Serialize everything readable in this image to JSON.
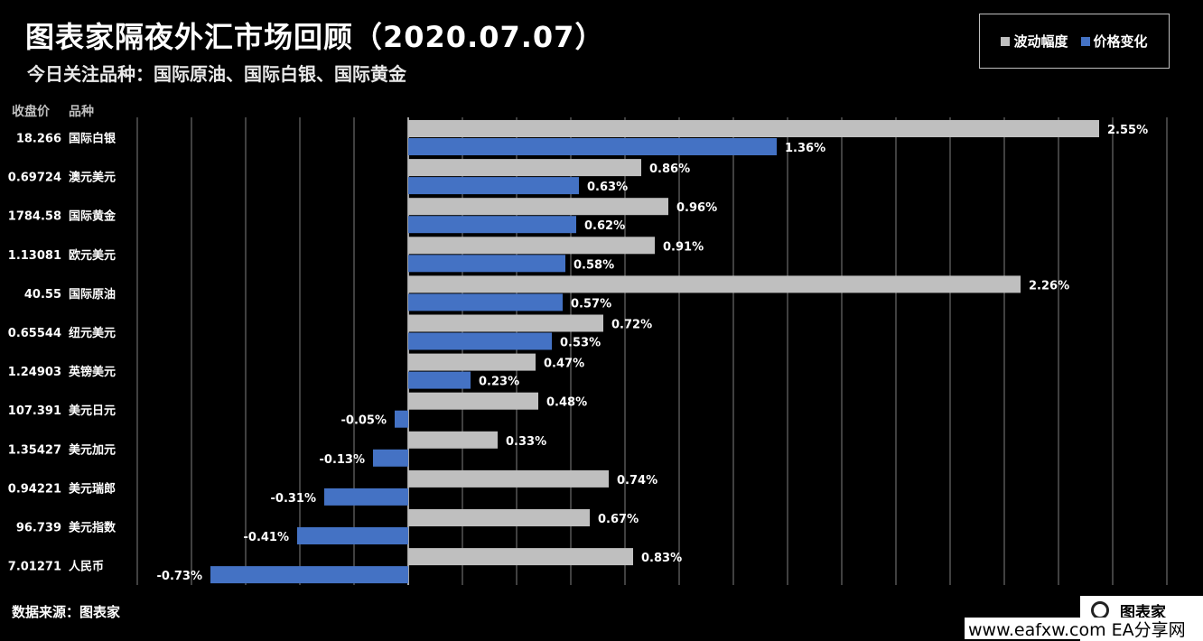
{
  "header": {
    "title": "图表家隔夜外汇市场回顾（2020.07.07）",
    "subtitle": "今日关注品种：国际原油、国际白银、国际黄金"
  },
  "legend": {
    "series1": "波动幅度",
    "series2": "价格变化"
  },
  "columns": {
    "price_header": "收盘价",
    "name_header": "品种"
  },
  "source": "数据来源：图表家",
  "watermark": {
    "brand": "图表家",
    "url": "www.eafxw.com   EA分享网"
  },
  "colors": {
    "background": "#000000",
    "series1": "#bfbfbf",
    "series2": "#4472c4",
    "grid": "#808080"
  },
  "chart_data": {
    "type": "bar",
    "orientation": "horizontal",
    "categories": [
      "国际白银",
      "澳元美元",
      "国际黄金",
      "欧元美元",
      "国际原油",
      "纽元美元",
      "英镑美元",
      "美元日元",
      "美元加元",
      "美元瑞郎",
      "美元指数",
      "人民币"
    ],
    "closing_prices": [
      "18.266",
      "0.69724",
      "1784.58",
      "1.13081",
      "40.55",
      "0.65544",
      "1.24903",
      "107.391",
      "1.35427",
      "0.94221",
      "96.739",
      "7.01271"
    ],
    "series": [
      {
        "name": "波动幅度",
        "values": [
          2.55,
          0.86,
          0.96,
          0.91,
          2.26,
          0.72,
          0.47,
          0.48,
          0.33,
          0.74,
          0.67,
          0.83
        ]
      },
      {
        "name": "价格变化",
        "values": [
          1.36,
          0.63,
          0.62,
          0.58,
          0.57,
          0.53,
          0.23,
          -0.05,
          -0.13,
          -0.31,
          -0.41,
          -0.73
        ]
      }
    ],
    "value_suffix": "%",
    "xlim": [
      -1.0,
      2.8
    ],
    "grid": true,
    "legend_position": "top-right"
  }
}
